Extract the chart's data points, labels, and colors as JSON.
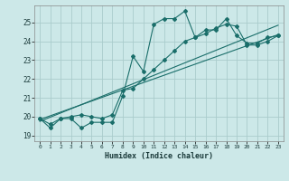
{
  "xlabel": "Humidex (Indice chaleur)",
  "bg_color": "#cce8e8",
  "grid_color": "#aacccc",
  "line_color": "#1a6e6a",
  "xlim": [
    -0.5,
    23.5
  ],
  "ylim": [
    18.7,
    25.9
  ],
  "yticks": [
    19,
    20,
    21,
    22,
    23,
    24,
    25
  ],
  "xticks": [
    0,
    1,
    2,
    3,
    4,
    5,
    6,
    7,
    8,
    9,
    10,
    11,
    12,
    13,
    14,
    15,
    16,
    17,
    18,
    19,
    20,
    21,
    22,
    23
  ],
  "line1_x": [
    0,
    1,
    2,
    3,
    4,
    5,
    6,
    7,
    8,
    9,
    10,
    11,
    12,
    13,
    14,
    15,
    16,
    17,
    18,
    19,
    20,
    21,
    22,
    23
  ],
  "line1_y": [
    19.9,
    19.4,
    19.9,
    19.9,
    19.4,
    19.7,
    19.7,
    19.7,
    21.1,
    23.2,
    22.4,
    24.9,
    25.2,
    25.2,
    25.6,
    24.2,
    24.6,
    24.6,
    25.2,
    24.3,
    23.9,
    23.9,
    24.2,
    24.3
  ],
  "line2_x": [
    0,
    1,
    2,
    3,
    4,
    5,
    6,
    7,
    8,
    9,
    10,
    11,
    12,
    13,
    14,
    15,
    16,
    17,
    18,
    19,
    20,
    21,
    22,
    23
  ],
  "line2_y": [
    19.9,
    19.6,
    19.9,
    20.0,
    20.1,
    20.0,
    19.9,
    20.1,
    21.4,
    21.5,
    22.0,
    22.5,
    23.0,
    23.5,
    24.0,
    24.2,
    24.4,
    24.7,
    24.9,
    24.8,
    23.8,
    23.8,
    24.0,
    24.3
  ],
  "line3_x": [
    0,
    23
  ],
  "line3_y": [
    19.85,
    24.35
  ],
  "line4_x": [
    0,
    23
  ],
  "line4_y": [
    19.75,
    24.85
  ]
}
